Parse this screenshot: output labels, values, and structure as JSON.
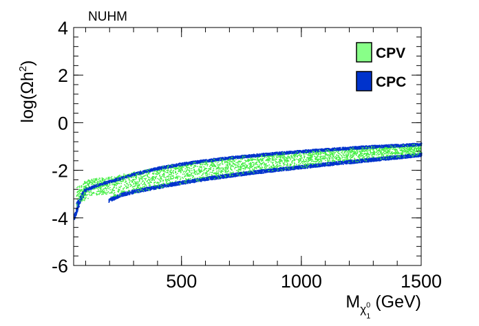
{
  "chart_data": {
    "type": "scatter",
    "title": "NUHM",
    "xlabel": "M_{χ₁⁰} (GeV)",
    "xlabel_main": "M",
    "xlabel_sub": "χ",
    "xlabel_subsub": "1",
    "xlabel_subsup": "0",
    "xlabel_unit": " (GeV)",
    "ylabel_pre": "log(Ωh",
    "ylabel_sup": "2",
    "ylabel_post": ")",
    "xlim": [
      50,
      1500
    ],
    "ylim": [
      -6,
      4
    ],
    "xticks": [
      500,
      1000,
      1500
    ],
    "xtick_labels": [
      "500",
      "1000",
      "1500"
    ],
    "yticks": [
      -6,
      -4,
      -2,
      0,
      2,
      4
    ],
    "ytick_labels": [
      "-6",
      "-4",
      "-2",
      "0",
      "2",
      "4"
    ],
    "legend": [
      {
        "name": "CPV",
        "color": "#88ff88"
      },
      {
        "name": "CPC",
        "color": "#0033cc"
      }
    ],
    "legend_position": "top-right",
    "series": [
      {
        "name": "CPC upper band",
        "color": "#0033cc",
        "x": [
          60,
          100,
          150,
          200,
          300,
          400,
          500,
          600,
          700,
          800,
          900,
          1000,
          1100,
          1200,
          1300,
          1400,
          1500
        ],
        "y": [
          -3.4,
          -2.8,
          -2.6,
          -2.45,
          -2.15,
          -1.9,
          -1.72,
          -1.58,
          -1.46,
          -1.36,
          -1.27,
          -1.19,
          -1.12,
          -1.05,
          -0.99,
          -0.94,
          -0.89
        ],
        "thickness": 0.12
      },
      {
        "name": "CPC lower band",
        "color": "#0033cc",
        "x": [
          195,
          250,
          300,
          400,
          500,
          600,
          700,
          800,
          900,
          1000,
          1100,
          1200,
          1300,
          1400,
          1500
        ],
        "y": [
          -3.25,
          -3.0,
          -2.88,
          -2.68,
          -2.5,
          -2.34,
          -2.2,
          -2.07,
          -1.95,
          -1.84,
          -1.73,
          -1.63,
          -1.53,
          -1.43,
          -1.33
        ],
        "thickness": 0.15
      },
      {
        "name": "CPC low-mass tail",
        "color": "#0033cc",
        "x": [
          50,
          55,
          60,
          70,
          80,
          90,
          100
        ],
        "y": [
          -3.95,
          -3.85,
          -3.7,
          -3.4,
          -3.1,
          -2.95,
          -2.8
        ],
        "thickness": 0.25
      },
      {
        "name": "CPV scatter region",
        "color": "#44ee44",
        "x": [
          60,
          100,
          150,
          200,
          300,
          400,
          500,
          600,
          700,
          800,
          900,
          1000,
          1100,
          1200,
          1300,
          1400,
          1500
        ],
        "y_upper": [
          -2.7,
          -2.4,
          -2.3,
          -2.25,
          -2.05,
          -1.85,
          -1.68,
          -1.55,
          -1.44,
          -1.34,
          -1.26,
          -1.18,
          -1.11,
          -1.04,
          -0.98,
          -0.93,
          -0.88
        ],
        "y_lower": [
          -3.5,
          -3.2,
          -3.0,
          -3.1,
          -2.95,
          -2.75,
          -2.55,
          -2.4,
          -2.25,
          -2.1,
          -1.98,
          -1.87,
          -1.76,
          -1.65,
          -1.55,
          -1.45,
          -1.35
        ]
      }
    ]
  }
}
